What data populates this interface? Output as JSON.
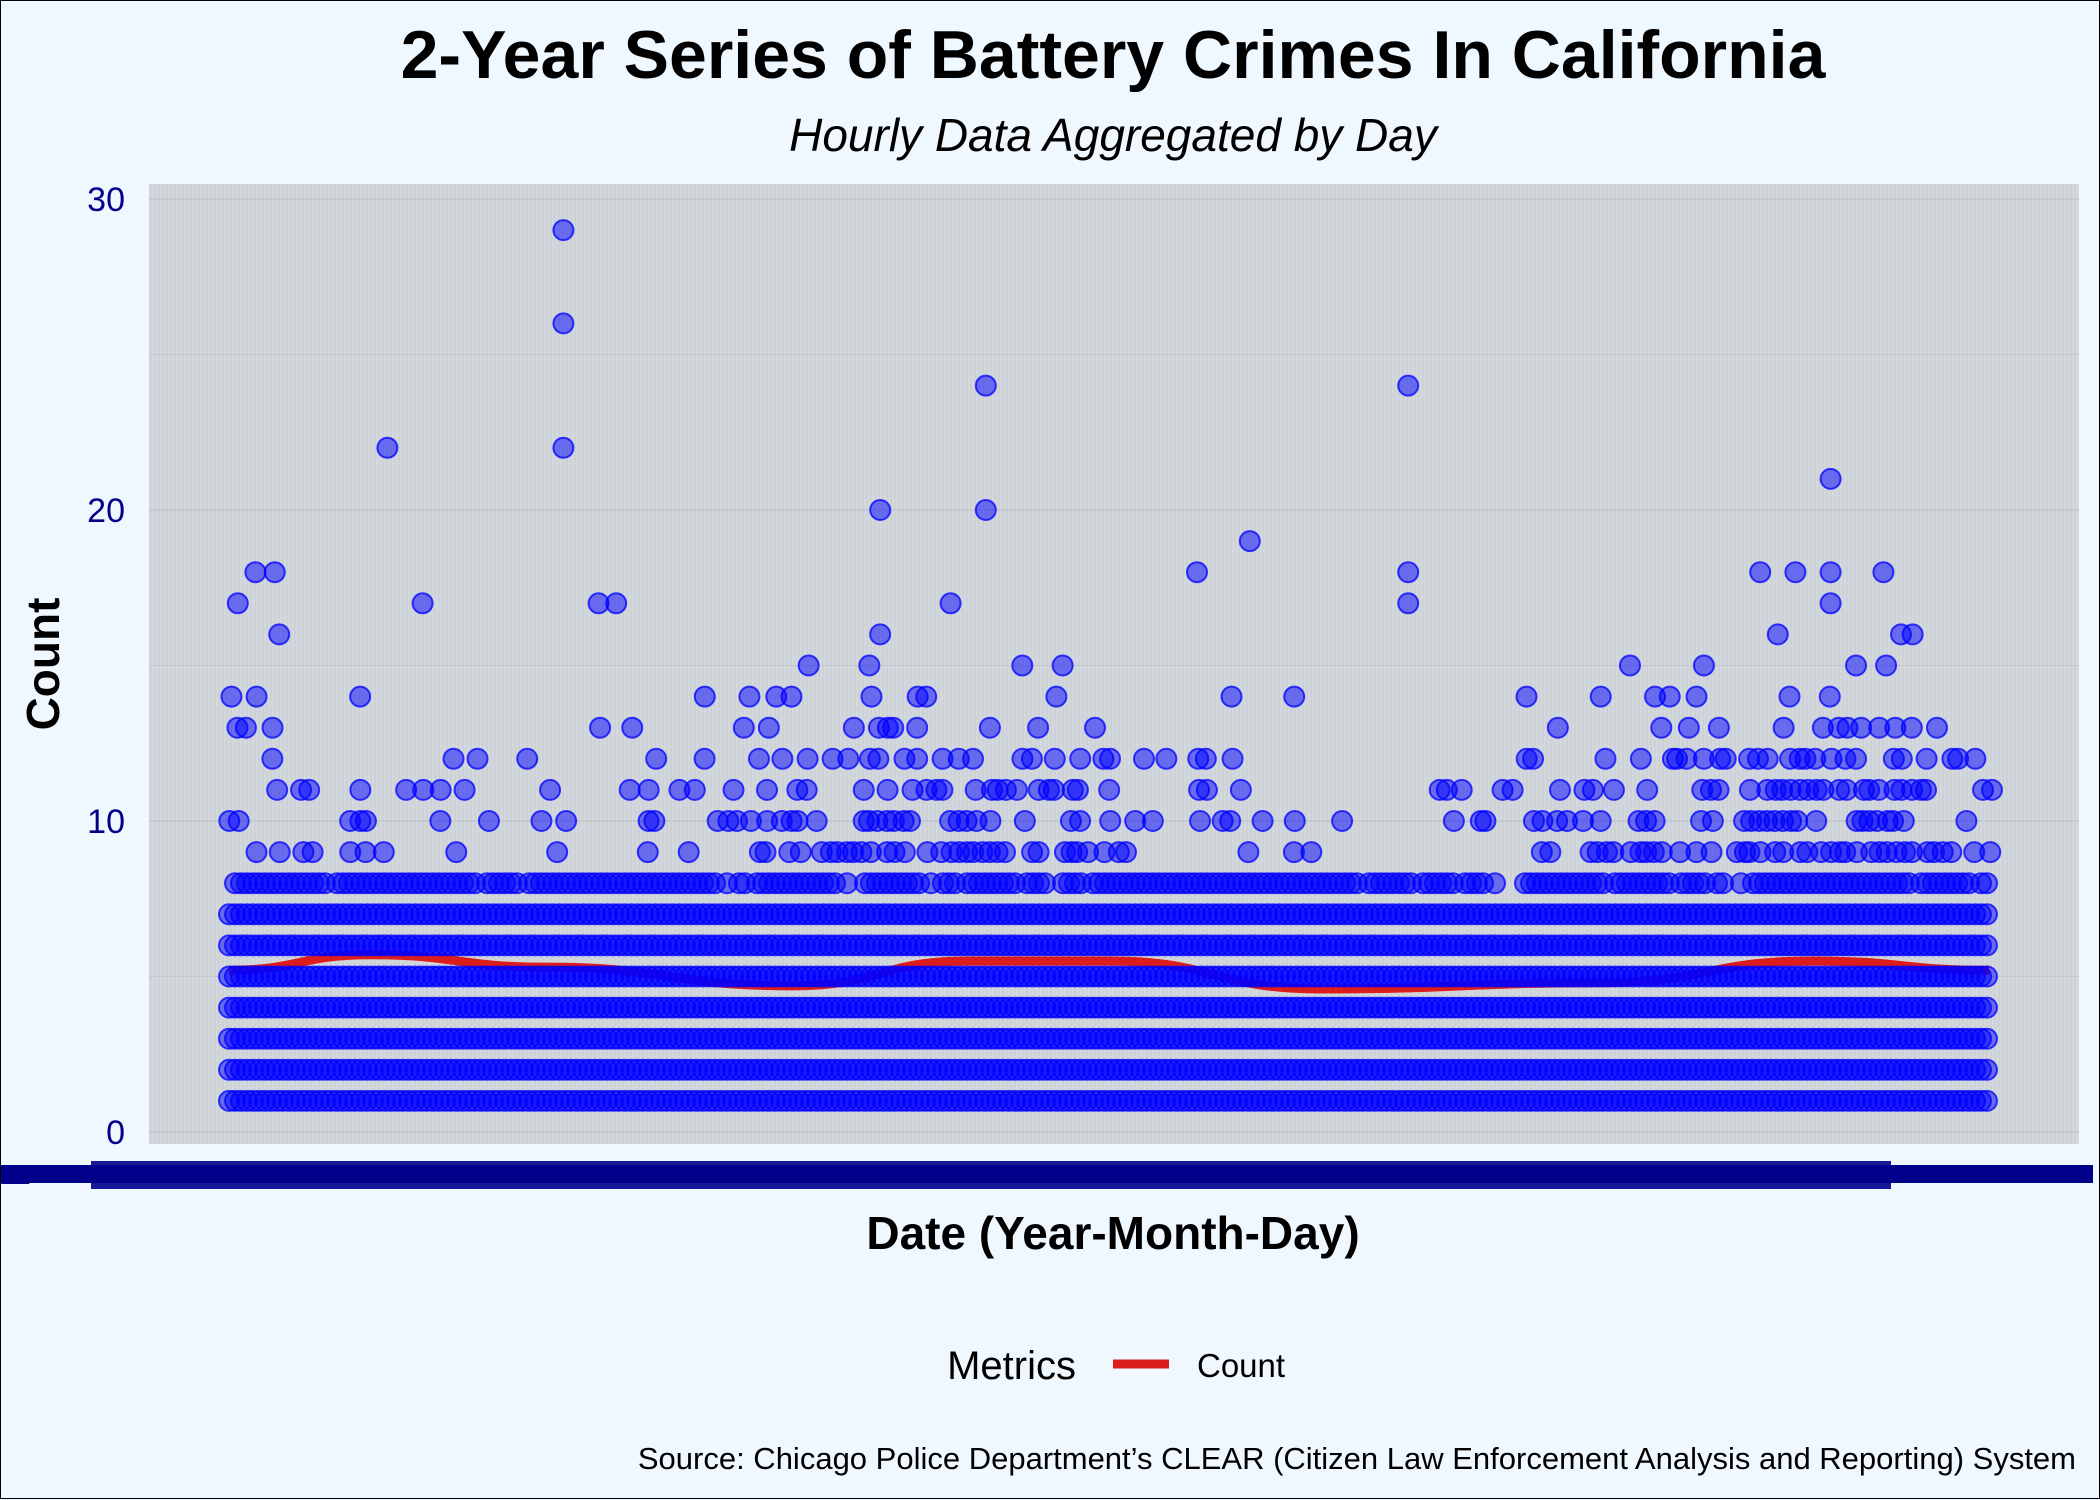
{
  "chart_data": {
    "type": "scatter",
    "title": "2-Year Series of Battery Crimes In California",
    "subtitle": "Hourly Data Aggregated by Day",
    "xlabel": "Date (Year-Month-Day)",
    "ylabel": "Count",
    "ylim": [
      0,
      30
    ],
    "yticks": [
      0,
      10,
      20,
      30
    ],
    "x_tick_labels_legible": false,
    "grid": true,
    "legend": {
      "title": "Metrics",
      "position": "bottom",
      "entries": [
        {
          "label": "Count",
          "color": "#dd1c1c"
        }
      ]
    },
    "caption": "Source: Chicago Police Department’s CLEAR (Citizen Law Enforcement Analysis and Reporting) System",
    "series": [
      {
        "kind": "points",
        "color": "#0000ff",
        "note_levels": "hourly counts per day; levels 1–7 appear on virtually every day",
        "dense_levels": [
          1,
          2,
          3,
          4,
          5,
          6,
          7,
          8
        ],
        "outliers": [
          {
            "x_frac": 0.19,
            "y": 29
          },
          {
            "x_frac": 0.19,
            "y": 26
          },
          {
            "x_frac": 0.19,
            "y": 22
          },
          {
            "x_frac": 0.09,
            "y": 22
          },
          {
            "x_frac": 0.005,
            "y": 17
          },
          {
            "x_frac": 0.015,
            "y": 18
          },
          {
            "x_frac": 0.026,
            "y": 18
          },
          {
            "x_frac": 0.11,
            "y": 17
          },
          {
            "x_frac": 0.21,
            "y": 17
          },
          {
            "x_frac": 0.22,
            "y": 17
          },
          {
            "x_frac": 0.37,
            "y": 20
          },
          {
            "x_frac": 0.43,
            "y": 24
          },
          {
            "x_frac": 0.43,
            "y": 20
          },
          {
            "x_frac": 0.41,
            "y": 17
          },
          {
            "x_frac": 0.55,
            "y": 18
          },
          {
            "x_frac": 0.58,
            "y": 19
          },
          {
            "x_frac": 0.67,
            "y": 24
          },
          {
            "x_frac": 0.67,
            "y": 18
          },
          {
            "x_frac": 0.67,
            "y": 17
          },
          {
            "x_frac": 0.91,
            "y": 21
          },
          {
            "x_frac": 0.87,
            "y": 18
          },
          {
            "x_frac": 0.89,
            "y": 18
          },
          {
            "x_frac": 0.91,
            "y": 18
          },
          {
            "x_frac": 0.94,
            "y": 18
          },
          {
            "x_frac": 0.91,
            "y": 17
          },
          {
            "x_frac": 0.88,
            "y": 16
          },
          {
            "x_frac": 0.95,
            "y": 16
          }
        ]
      },
      {
        "name": "Count",
        "kind": "smooth",
        "color": "#dd1c1c",
        "x_frac": [
          0.0,
          0.08,
          0.18,
          0.32,
          0.42,
          0.5,
          0.62,
          0.78,
          0.9,
          1.0
        ],
        "values": [
          5.2,
          5.7,
          5.3,
          4.7,
          5.5,
          5.5,
          4.6,
          4.8,
          5.5,
          5.2
        ]
      }
    ]
  }
}
